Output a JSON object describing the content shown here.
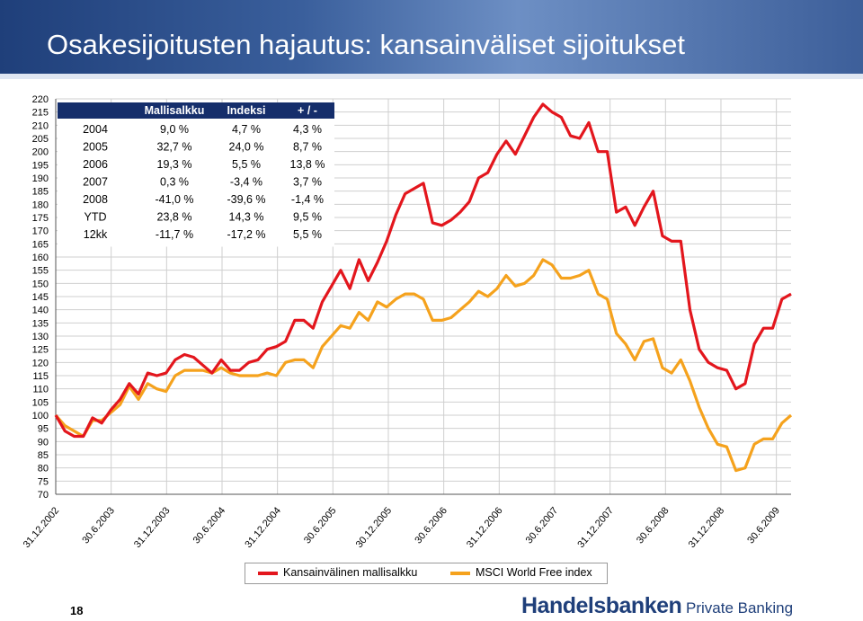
{
  "slide": {
    "title": "Osakesijoitusten hajautus: kansainväliset sijoitukset",
    "page_number": "18",
    "brand_name": "Handelsbanken",
    "brand_sub": "Private Banking"
  },
  "colors": {
    "portfolio": "#e3161d",
    "index": "#f5a21d",
    "banner": "#1f3f7a",
    "table_header": "#152e6b"
  },
  "table": {
    "headers": [
      "",
      "Mallisalkku",
      "Indeksi",
      "+ / -"
    ],
    "rows": [
      [
        "2004",
        "9,0 %",
        "4,7 %",
        "4,3 %"
      ],
      [
        "2005",
        "32,7 %",
        "24,0 %",
        "8,7 %"
      ],
      [
        "2006",
        "19,3 %",
        "5,5 %",
        "13,8 %"
      ],
      [
        "2007",
        "0,3 %",
        "-3,4 %",
        "3,7 %"
      ],
      [
        "2008",
        "-41,0 %",
        "-39,6 %",
        "-1,4 %"
      ],
      [
        "YTD",
        "23,8 %",
        "14,3 %",
        "9,5 %"
      ],
      [
        "12kk",
        "-11,7 %",
        "-17,2 %",
        "5,5 %"
      ]
    ]
  },
  "chart_data": {
    "type": "line",
    "title": "",
    "xlabel": "",
    "ylabel": "",
    "ylim": [
      70,
      220
    ],
    "ytick_step": 5,
    "x_tick_labels": [
      "31.12.2002",
      "30.6.2003",
      "31.12.2003",
      "30.6.2004",
      "31.12.2004",
      "30.6.2005",
      "30.12.2005",
      "30.6.2006",
      "31.12.2006",
      "30.6.2007",
      "31.12.2007",
      "30.6.2008",
      "31.12.2008",
      "30.6.2009"
    ],
    "grid": true,
    "legend_position": "bottom",
    "series": [
      {
        "name": "Kansainvälinen mallisalkku",
        "color": "#e3161d",
        "values": [
          100,
          94,
          92,
          92,
          99,
          97,
          102,
          106,
          112,
          108,
          116,
          115,
          116,
          121,
          123,
          122,
          119,
          116,
          121,
          117,
          117,
          120,
          121,
          125,
          126,
          128,
          136,
          136,
          133,
          143,
          149,
          155,
          148,
          159,
          151,
          158,
          166,
          176,
          184,
          186,
          188,
          173,
          172,
          174,
          177,
          181,
          190,
          192,
          199,
          204,
          199,
          206,
          213,
          218,
          215,
          213,
          206,
          205,
          211,
          200,
          200,
          177,
          179,
          172,
          179,
          185,
          168,
          166,
          166,
          140,
          125,
          120,
          118,
          117,
          110,
          112,
          127,
          133,
          133,
          144,
          146
        ]
      },
      {
        "name": "MSCI World Free index",
        "color": "#f5a21d",
        "values": [
          100,
          96,
          94,
          92,
          98,
          98,
          101,
          104,
          111,
          106,
          112,
          110,
          109,
          115,
          117,
          117,
          117,
          116,
          118,
          116,
          115,
          115,
          115,
          116,
          115,
          120,
          121,
          121,
          118,
          126,
          130,
          134,
          133,
          139,
          136,
          143,
          141,
          144,
          146,
          146,
          144,
          136,
          136,
          137,
          140,
          143,
          147,
          145,
          148,
          153,
          149,
          150,
          153,
          159,
          157,
          152,
          152,
          153,
          155,
          146,
          144,
          131,
          127,
          121,
          128,
          129,
          118,
          116,
          121,
          113,
          103,
          95,
          89,
          88,
          79,
          80,
          89,
          91,
          91,
          97,
          100
        ]
      }
    ]
  }
}
